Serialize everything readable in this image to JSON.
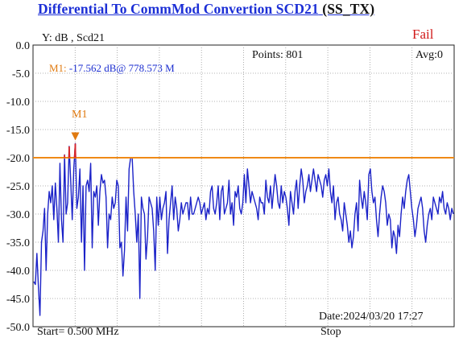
{
  "header": {
    "title": "Differential To CommMod Convertion SCD21",
    "title_suffix": "(SS_TX)"
  },
  "status": "Fail",
  "info": {
    "y_label": "Y: dB , Scd21",
    "points": "Points: 801",
    "avg": "Avg:0",
    "marker_name": "M1:",
    "marker_value": "-17.562 dB@ 778.573 M",
    "marker_tag": "M1",
    "start": "Start= 0.500 MHz",
    "date": "Date:2024/03/20 17:27",
    "stop": "Stop"
  },
  "colors": {
    "trace": "#1b22c8",
    "limit": "#ef8a17",
    "limit_exceed": "#d7262a",
    "marker": "#e07a10",
    "grid": "#9a9a9a",
    "title": "#1c2fd6",
    "status": "#d11a1a"
  },
  "chart_data": {
    "type": "line",
    "ylabel": "Y: dB , Scd21",
    "ylim": [
      -50,
      0
    ],
    "y_ticks": [
      "0.0",
      "-5.0",
      "-10.0",
      "-15.0",
      "-20.0",
      "-25.0",
      "-30.0",
      "-35.0",
      "-40.0",
      "-45.0",
      "-50.0"
    ],
    "grid": true,
    "limit_line": -20.0,
    "series": [
      {
        "name": "Scd21",
        "values": [
          -42,
          -42.5,
          -37,
          -43,
          -48,
          -35,
          -33,
          -29,
          -40,
          -30,
          -26,
          -28,
          -25,
          -31,
          -24.5,
          -29,
          -35,
          -21,
          -31,
          -35,
          -19.5,
          -30,
          -28,
          -18,
          -24,
          -31,
          -22,
          -17.5,
          -29,
          -27,
          -22,
          -35,
          -25,
          -40,
          -25,
          -24,
          -26,
          -21,
          -36,
          -26,
          -27,
          -25,
          -32,
          -26,
          -23,
          -24.5,
          -24,
          -27,
          -36,
          -30,
          -31,
          -27,
          -29,
          -28,
          -24,
          -25,
          -36,
          -35,
          -41,
          -36.5,
          -27,
          -33,
          -22,
          -20,
          -20,
          -26,
          -30,
          -35,
          -30,
          -45,
          -27,
          -29,
          -30,
          -38,
          -34,
          -27,
          -28,
          -29,
          -33,
          -40,
          -27,
          -32,
          -27,
          -31,
          -29,
          -28,
          -26,
          -37,
          -31,
          -28,
          -25,
          -31,
          -27,
          -29,
          -33,
          -31,
          -28,
          -30,
          -29,
          -28,
          -28,
          -31,
          -27,
          -30,
          -30,
          -29,
          -28,
          -27,
          -28,
          -30,
          -29,
          -28,
          -31,
          -29,
          -30,
          -26,
          -25,
          -29,
          -30,
          -28,
          -25,
          -31,
          -26,
          -25,
          -30,
          -29,
          -28,
          -24,
          -30,
          -28,
          -32,
          -26,
          -27,
          -25,
          -29,
          -30,
          -28,
          -23,
          -28,
          -22,
          -25,
          -28,
          -26,
          -27,
          -28,
          -29,
          -31,
          -27,
          -28,
          -28,
          -30,
          -24,
          -27,
          -28,
          -25,
          -29,
          -26,
          -23,
          -25,
          -28,
          -29,
          -25,
          -28,
          -26,
          -27,
          -29,
          -32,
          -26,
          -28,
          -30,
          -26,
          -24,
          -29,
          -25,
          -22,
          -24,
          -28,
          -26,
          -25,
          -23,
          -26,
          -24,
          -22,
          -24,
          -26,
          -23,
          -24,
          -25,
          -27,
          -24,
          -23,
          -25,
          -22,
          -26,
          -28,
          -25,
          -31,
          -28,
          -27,
          -30,
          -31,
          -33,
          -28,
          -30,
          -32,
          -35,
          -33,
          -36,
          -34,
          -30,
          -28,
          -33,
          -24,
          -27,
          -29,
          -26,
          -28,
          -31,
          -23,
          -22,
          -26,
          -28,
          -27,
          -31,
          -34,
          -30,
          -27,
          -25,
          -26,
          -28,
          -32,
          -30,
          -31,
          -36,
          -33,
          -34,
          -37,
          -32,
          -34,
          -30,
          -27,
          -29,
          -26,
          -24,
          -23,
          -26,
          -29,
          -31,
          -34,
          -32,
          -29,
          -28,
          -27,
          -29,
          -33,
          -35,
          -32,
          -30,
          -29,
          -31,
          -27,
          -28,
          -29,
          -30,
          -27,
          -28,
          -26,
          -29,
          -30,
          -28,
          -29,
          -31,
          -29,
          -30
        ]
      }
    ],
    "marker": {
      "name": "M1",
      "value_db": -17.562
    }
  }
}
